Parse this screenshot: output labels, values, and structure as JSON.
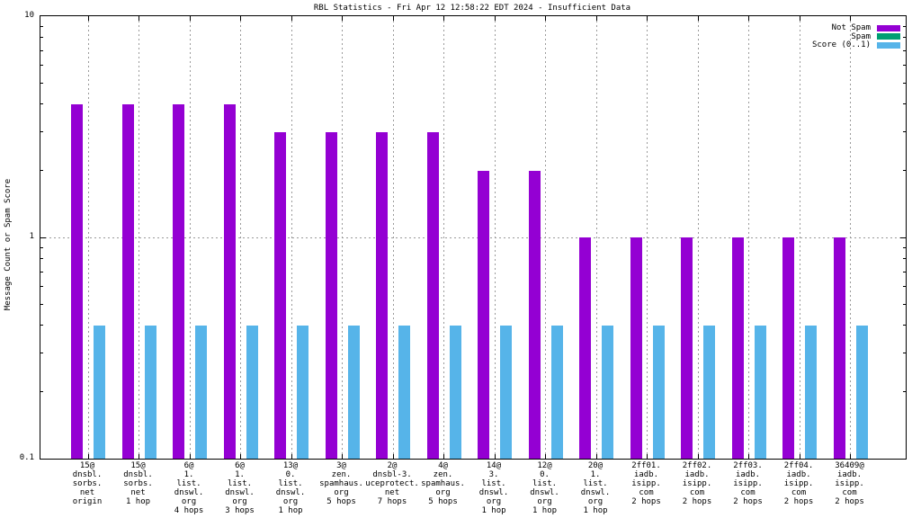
{
  "title": "RBL Statistics - Fri Apr 12 12:58:22 EDT 2024 - Insufficient Data",
  "chart_data": {
    "type": "bar",
    "title": "RBL Statistics - Fri Apr 12 12:58:22 EDT 2024 - Insufficient Data",
    "xlabel": "",
    "ylabel": "Message Count or Spam Score",
    "yscale": "log",
    "ylim": [
      0.1,
      10
    ],
    "yticks": [
      {
        "value": 0.1,
        "label": "0.1"
      },
      {
        "value": 1,
        "label": "1"
      },
      {
        "value": 10,
        "label": "10"
      }
    ],
    "grid": true,
    "legend_position": "top-right-inside",
    "legend": [
      {
        "label": "Not Spam",
        "color": "#9400d3"
      },
      {
        "label": "Spam",
        "color": "#009e73"
      },
      {
        "label": "Score (0..1)",
        "color": "#56b4e9"
      }
    ],
    "categories": [
      [
        "15@",
        "dnsbl.",
        "sorbs.",
        "net",
        "origin"
      ],
      [
        "15@",
        "dnsbl.",
        "sorbs.",
        "net",
        "1 hop"
      ],
      [
        "6@",
        "1.",
        "list.",
        "dnswl.",
        "org",
        "4 hops"
      ],
      [
        "6@",
        "1.",
        "list.",
        "dnswl.",
        "org",
        "3 hops"
      ],
      [
        "13@",
        "0.",
        "list.",
        "dnswl.",
        "org",
        "1 hop"
      ],
      [
        "3@",
        "zen.",
        "spamhaus.",
        "org",
        "5 hops"
      ],
      [
        "2@",
        "dnsbl-3.",
        "uceprotect.",
        "net",
        "7 hops"
      ],
      [
        "4@",
        "zen.",
        "spamhaus.",
        "org",
        "5 hops"
      ],
      [
        "14@",
        "3.",
        "list.",
        "dnswl.",
        "org",
        "1 hop"
      ],
      [
        "12@",
        "0.",
        "list.",
        "dnswl.",
        "org",
        "1 hop"
      ],
      [
        "20@",
        "1.",
        "list.",
        "dnswl.",
        "org",
        "1 hop"
      ],
      [
        "2ff01.",
        "iadb.",
        "isipp.",
        "com",
        "2 hops"
      ],
      [
        "2ff02.",
        "iadb.",
        "isipp.",
        "com",
        "2 hops"
      ],
      [
        "2ff03.",
        "iadb.",
        "isipp.",
        "com",
        "2 hops"
      ],
      [
        "2ff04.",
        "iadb.",
        "isipp.",
        "com",
        "2 hops"
      ],
      [
        "36409@",
        "iadb.",
        "isipp.",
        "com",
        "2 hops"
      ]
    ],
    "series": [
      {
        "name": "Not Spam",
        "color": "#9400d3",
        "values": [
          4,
          4,
          4,
          4,
          3,
          3,
          3,
          3,
          2,
          2,
          1,
          1,
          1,
          1,
          1,
          1
        ]
      },
      {
        "name": "Spam",
        "color": "#009e73",
        "values": [
          0,
          0,
          0,
          0,
          0,
          0,
          0,
          0,
          0,
          0,
          0,
          0,
          0,
          0,
          0,
          0
        ]
      },
      {
        "name": "Score (0..1)",
        "color": "#56b4e9",
        "values": [
          0.4,
          0.4,
          0.4,
          0.4,
          0.4,
          0.4,
          0.4,
          0.4,
          0.4,
          0.4,
          0.4,
          0.4,
          0.4,
          0.4,
          0.4,
          0.4
        ]
      }
    ]
  }
}
